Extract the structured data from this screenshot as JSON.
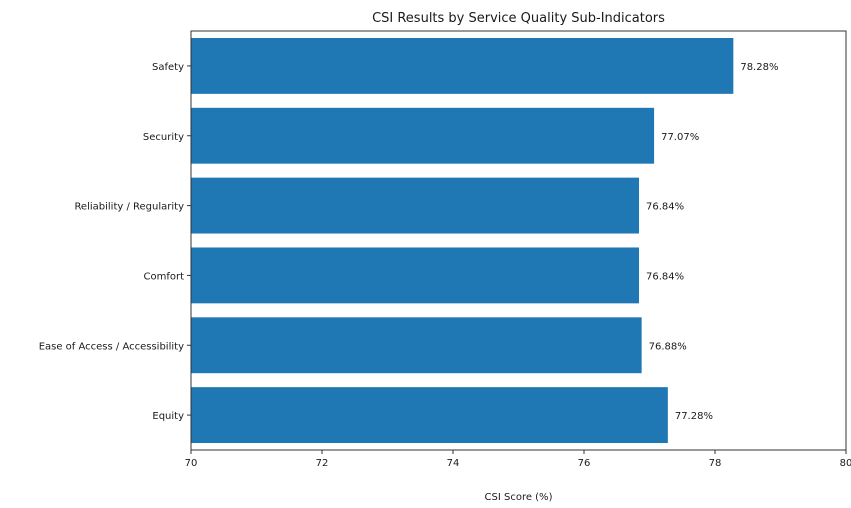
{
  "chart_data": {
    "type": "bar",
    "orientation": "horizontal",
    "title": "CSI Results by Service Quality Sub-Indicators",
    "xlabel": "CSI Score (%)",
    "ylabel": "",
    "xlim": [
      70,
      80
    ],
    "xticks": [
      "70",
      "72",
      "74",
      "76",
      "78",
      "80"
    ],
    "grid": false,
    "legend": "none",
    "bar_color": "#1f77b4",
    "categories": [
      "Safety",
      "Security",
      "Reliability / Regularity",
      "Comfort",
      "Ease of Access / Accessibility",
      "Equity"
    ],
    "values": [
      78.28,
      77.07,
      76.84,
      76.84,
      76.88,
      77.28
    ],
    "data_labels": [
      "78.28%",
      "77.07%",
      "76.84%",
      "76.84%",
      "76.88%",
      "77.28%"
    ]
  }
}
